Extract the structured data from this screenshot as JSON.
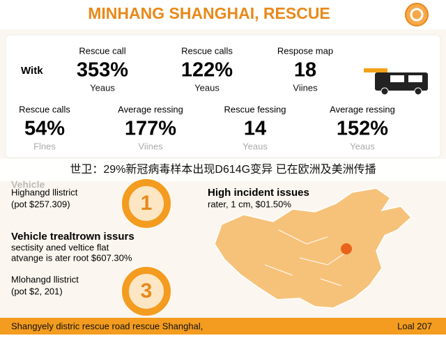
{
  "header": {
    "title": "MINHANG SHANGHAI, RESCUE"
  },
  "stats": {
    "lead": "Witk",
    "row1": [
      {
        "label": "Rescue call",
        "value": "353%",
        "unit": "Yeaus"
      },
      {
        "label": "Rescue calls",
        "value": "122%",
        "unit": "Yeaus"
      },
      {
        "label": "Respose map",
        "value": "18",
        "unit": "Viines"
      }
    ],
    "row2": [
      {
        "label": "Rescue calls",
        "value": "54%",
        "unit": "Flnes"
      },
      {
        "label": "Average ressing",
        "value": "177%",
        "unit": "Viines"
      },
      {
        "label": "Rescue fessing",
        "value": "14",
        "unit": "Yeaus"
      },
      {
        "label": "Average ressing",
        "value": "152%",
        "unit": "Yeaus"
      }
    ]
  },
  "banner": "世卫：29%新冠病毒样本出现D614G变异 已在欧洲及美洲传播",
  "left": {
    "section": "Vehicle",
    "item1": {
      "title": "Highangd llistrict",
      "note": "(pot $257.309)",
      "rank": "1"
    },
    "issues": {
      "title": "Vehicle trealtrown issurs",
      "line1": "sectisity aned veltice flat",
      "line2": "atvange is ater root $607.30%"
    },
    "item3": {
      "title": "Mlohangd llistrict",
      "note": "(pot $2, 201)",
      "rank": "3"
    }
  },
  "right": {
    "title": "High incident issues",
    "note": "rater, 1 cm, $01.50%"
  },
  "footer": {
    "left": "Shangyely distric rescue road rescue Shanghal,",
    "right": "Loal 207"
  }
}
